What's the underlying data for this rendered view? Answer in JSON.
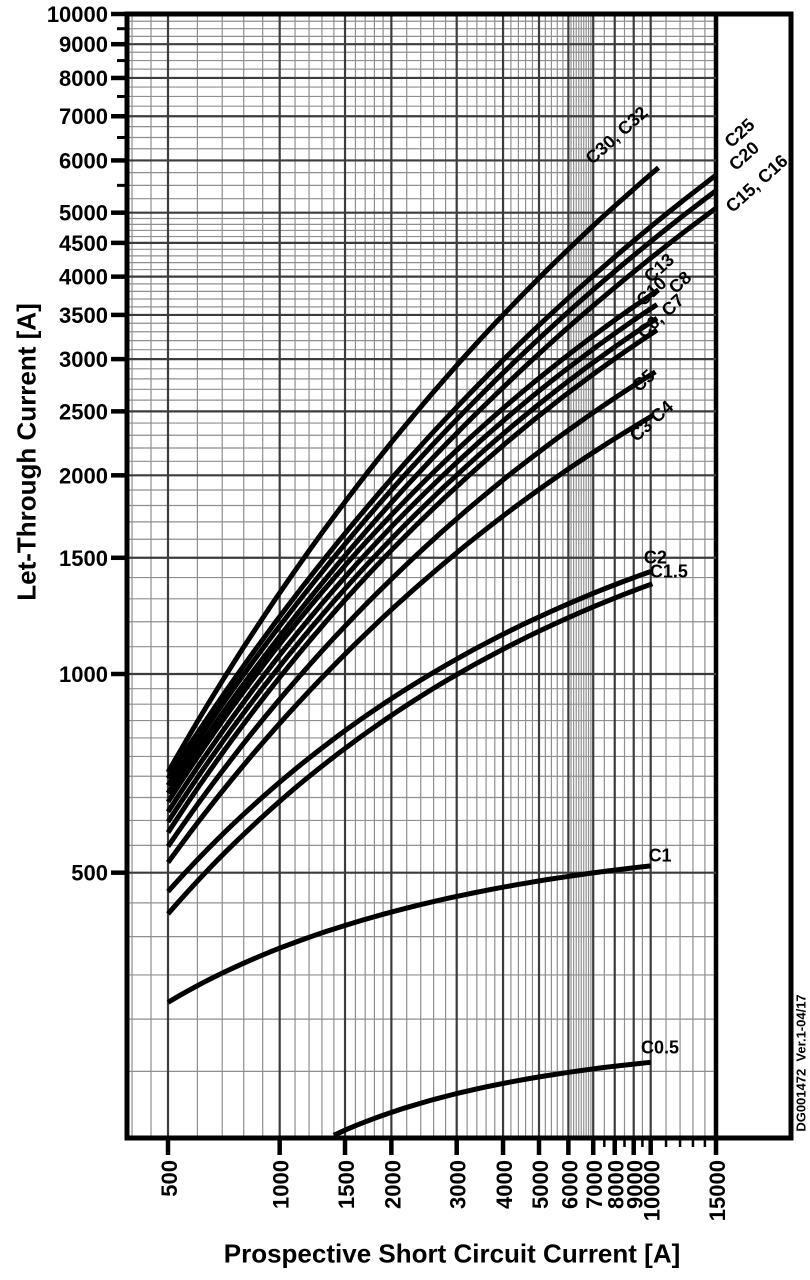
{
  "figure": {
    "doc_code": "DG001472  Ver.1-04/17"
  },
  "chart_data": {
    "type": "line",
    "title": "",
    "xlabel": "Prospective Short Circuit Current [A]",
    "ylabel": "Let-Through Current [A]",
    "xscale": "log",
    "yscale": "log",
    "xlim": [
      390,
      23900
    ],
    "ylim": [
      200,
      10000
    ],
    "grid_x_max": 15000,
    "legend_position": "on-curve-labels",
    "x_axis": {
      "title": "Prospective Short Circuit Current [A]",
      "tick_values": [
        500,
        1000,
        1500,
        2000,
        3000,
        4000,
        5000,
        6000,
        7000,
        8000,
        9000,
        10000,
        15000
      ],
      "tick_labels": [
        "500",
        "1000",
        "1500",
        "2000",
        "3000",
        "4000",
        "5000",
        "6000",
        "7000",
        "8000",
        "9000",
        "10000",
        "15000"
      ],
      "minor_tick_values": [
        7500,
        8500,
        9500,
        11000,
        12000,
        13000,
        14000
      ]
    },
    "y_axis": {
      "title": "Let-Through Current [A]",
      "tick_values": [
        10000,
        9000,
        8000,
        7000,
        6000,
        5000,
        4500,
        4000,
        3500,
        3000,
        2500,
        2000,
        1500,
        1000,
        500
      ],
      "tick_labels": [
        "10000",
        "9000",
        "8000",
        "7000",
        "6000",
        "5000",
        "4500",
        "4000",
        "3500",
        "3000",
        "2500",
        "2000",
        "1500",
        "1000",
        "500"
      ],
      "minor_tick_values": [
        9500,
        8500,
        7500,
        6500,
        5500
      ]
    },
    "grid": {
      "x_major": [
        500,
        1000,
        1500,
        2000,
        3000,
        4000,
        5000,
        6000,
        7000,
        8000,
        9000,
        10000,
        15000
      ],
      "y_major": [
        500,
        1000,
        1500,
        2000,
        2500,
        3000,
        3500,
        4000,
        4500,
        5000,
        6000,
        7000,
        8000,
        9000,
        10000
      ],
      "x_minor_ranges": [
        {
          "from": 400,
          "to": 500,
          "step": 50
        },
        {
          "from": 500,
          "to": 2000,
          "step": 100
        },
        {
          "from": 2000,
          "to": 6000,
          "step": 200
        },
        {
          "from": 6000,
          "to": 7000,
          "step": 100
        },
        {
          "from": 7000,
          "to": 10000,
          "step": 500
        },
        {
          "from": 10000,
          "to": 15000,
          "step": 1000
        }
      ],
      "y_minor_ranges": [
        {
          "from": 250,
          "to": 1000,
          "step": 50
        },
        {
          "from": 1000,
          "to": 5000,
          "step": 100
        },
        {
          "from": 5000,
          "to": 10000,
          "step": 250
        }
      ]
    },
    "series": [
      {
        "name": "C30, C32",
        "points": [
          [
            500,
            710
          ],
          [
            2000,
            2240
          ],
          [
            10500,
            5850
          ]
        ],
        "u": 0.42,
        "v": 0.6,
        "label": {
          "x": 8300,
          "y": 6450,
          "angle": -42
        }
      },
      {
        "name": "C25",
        "points": [
          [
            500,
            695
          ],
          [
            2000,
            2020
          ],
          [
            15000,
            5700
          ]
        ],
        "u": 0.42,
        "v": 0.6,
        "label": {
          "x": 17800,
          "y": 6500,
          "angle": -42
        }
      },
      {
        "name": "C20",
        "points": [
          [
            500,
            678
          ],
          [
            2000,
            1950
          ],
          [
            15000,
            5400
          ]
        ],
        "u": 0.42,
        "v": 0.6,
        "label": {
          "x": 18300,
          "y": 6000,
          "angle": -42
        }
      },
      {
        "name": "C15, C16",
        "points": [
          [
            500,
            660
          ],
          [
            2000,
            1860
          ],
          [
            15000,
            5080
          ]
        ],
        "u": 0.42,
        "v": 0.6,
        "label": {
          "x": 19800,
          "y": 5450,
          "angle": -42
        }
      },
      {
        "name": "C13",
        "points": [
          [
            500,
            640
          ],
          [
            2000,
            1740
          ],
          [
            10500,
            3820
          ]
        ],
        "u": 0.42,
        "v": 0.63,
        "label": {
          "x": 10800,
          "y": 4060,
          "angle": -42
        }
      },
      {
        "name": "C10",
        "points": [
          [
            500,
            618
          ],
          [
            2000,
            1660
          ],
          [
            10400,
            3630
          ]
        ],
        "u": 0.42,
        "v": 0.63,
        "label": {
          "x": 10300,
          "y": 3740,
          "angle": -42
        }
      },
      {
        "name": "C8",
        "points": [
          [
            500,
            597
          ],
          [
            2000,
            1600
          ],
          [
            10400,
            3460
          ]
        ],
        "u": 0.42,
        "v": 0.63,
        "label": {
          "x": 12300,
          "y": 3860,
          "angle": -42
        }
      },
      {
        "name": "C6, C7",
        "points": [
          [
            500,
            575
          ],
          [
            2000,
            1540
          ],
          [
            10400,
            3320
          ]
        ],
        "u": 0.42,
        "v": 0.63,
        "label": {
          "x": 10900,
          "y": 3430,
          "angle": -42
        }
      },
      {
        "name": "C5",
        "points": [
          [
            500,
            548
          ],
          [
            2000,
            1390
          ],
          [
            10300,
            2870
          ]
        ],
        "u": 0.42,
        "v": 0.63,
        "label": {
          "x": 9800,
          "y": 2740,
          "angle": -42
        }
      },
      {
        "name": "C3 C4",
        "points": [
          [
            500,
            518
          ],
          [
            2000,
            1240
          ],
          [
            10200,
            2470
          ]
        ],
        "u": 0.42,
        "v": 0.63,
        "label": {
          "x": 10300,
          "y": 2380,
          "angle": -42
        }
      },
      {
        "name": "C2",
        "points": [
          [
            500,
            468
          ],
          [
            2000,
            900
          ],
          [
            10000,
            1430
          ]
        ],
        "u": 0.4,
        "v": 0.68,
        "label": {
          "x": 10300,
          "y": 1470,
          "angle": 0
        }
      },
      {
        "name": "C1.5",
        "points": [
          [
            500,
            433
          ],
          [
            2000,
            850
          ],
          [
            10100,
            1370
          ]
        ],
        "u": 0.4,
        "v": 0.68,
        "label": {
          "x": 11200,
          "y": 1400,
          "angle": 0
        }
      },
      {
        "name": "C1",
        "points": [
          [
            500,
            318
          ],
          [
            2000,
            427
          ],
          [
            10000,
            512
          ]
        ],
        "u": 0.35,
        "v": 0.75,
        "label": {
          "x": 10600,
          "y": 520,
          "angle": 0
        }
      },
      {
        "name": "C0.5",
        "points": [
          [
            1400,
            200
          ],
          [
            2000,
            217
          ],
          [
            10000,
            258
          ]
        ],
        "u": 0.35,
        "v": 0.72,
        "label": {
          "x": 10600,
          "y": 266,
          "angle": 0
        }
      }
    ]
  }
}
